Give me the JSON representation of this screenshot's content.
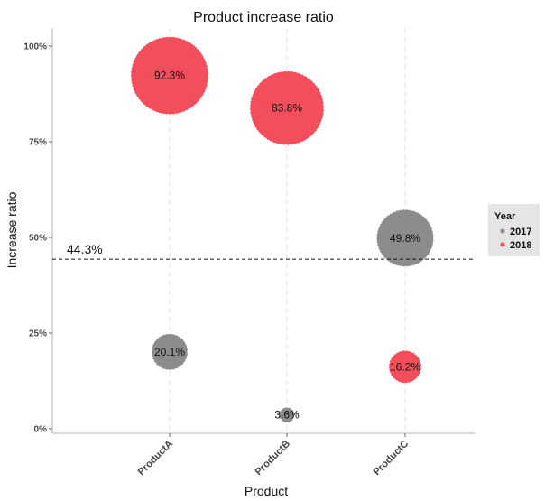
{
  "chart_data": {
    "type": "scatter",
    "title": "Product increase ratio",
    "xlabel": "Product",
    "ylabel": "Increase ratio",
    "categories": [
      "ProductA",
      "ProductB",
      "ProductC"
    ],
    "ylim": [
      0,
      1.05
    ],
    "yticks": [
      {
        "value": 0,
        "label": "0%"
      },
      {
        "value": 0.25,
        "label": "25%"
      },
      {
        "value": 0.5,
        "label": "50%"
      },
      {
        "value": 0.75,
        "label": "75%"
      },
      {
        "value": 1.0,
        "label": "100%"
      }
    ],
    "grid": "vertical-dashed",
    "legend": {
      "title": "Year",
      "position": "right",
      "entries": [
        "2017",
        "2018"
      ]
    },
    "series": [
      {
        "name": "2017",
        "color": "#8c8c8c",
        "points": [
          {
            "x": "ProductA",
            "y": 0.201,
            "label": "20.1%"
          },
          {
            "x": "ProductB",
            "y": 0.036,
            "label": "3.6%"
          },
          {
            "x": "ProductC",
            "y": 0.498,
            "label": "49.8%"
          }
        ]
      },
      {
        "name": "2018",
        "color": "#f24e5c",
        "points": [
          {
            "x": "ProductA",
            "y": 0.923,
            "label": "92.3%"
          },
          {
            "x": "ProductB",
            "y": 0.838,
            "label": "83.8%"
          },
          {
            "x": "ProductC",
            "y": 0.162,
            "label": "16.2%"
          }
        ]
      }
    ],
    "reference_line": {
      "y": 0.443,
      "label": "44.3%",
      "style": "dashed"
    }
  }
}
